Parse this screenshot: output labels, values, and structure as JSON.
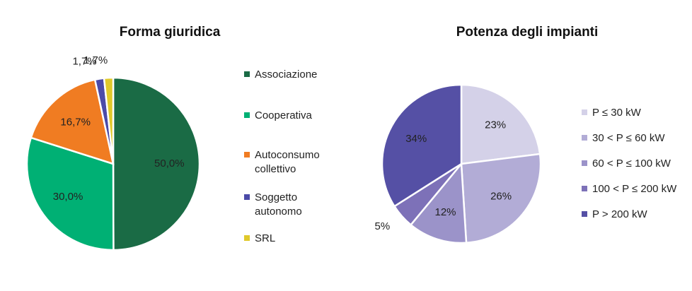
{
  "chart_data": [
    {
      "type": "pie",
      "title": "Forma giuridica",
      "categories": [
        "Associazione",
        "Cooperativa",
        "Autoconsumo collettivo",
        "Soggetto autonomo",
        "SRL"
      ],
      "values": [
        50,
        30,
        16.7,
        1.7,
        1.7
      ],
      "value_labels": [
        "50,0%",
        "30,0%",
        "16,7%",
        "1,7%",
        "1,7%"
      ],
      "colors": [
        "#1a6b45",
        "#00b074",
        "#f07c22",
        "#4b4aa8",
        "#e0c92b"
      ],
      "legend": "right"
    },
    {
      "type": "pie",
      "title": "Potenza degli impianti",
      "categories": [
        "P ≤ 30 kW",
        "30 < P ≤ 60 kW",
        "60 < P ≤ 100 kW",
        "100 < P ≤ 200 kW",
        "P > 200 kW"
      ],
      "values": [
        23,
        26,
        12,
        5,
        34
      ],
      "value_labels": [
        "23%",
        "26%",
        "12%",
        "5%",
        "34%"
      ],
      "colors": [
        "#d4d1e8",
        "#b2acd6",
        "#9b93c9",
        "#7d71b8",
        "#5550a5"
      ],
      "legend": "right"
    }
  ]
}
